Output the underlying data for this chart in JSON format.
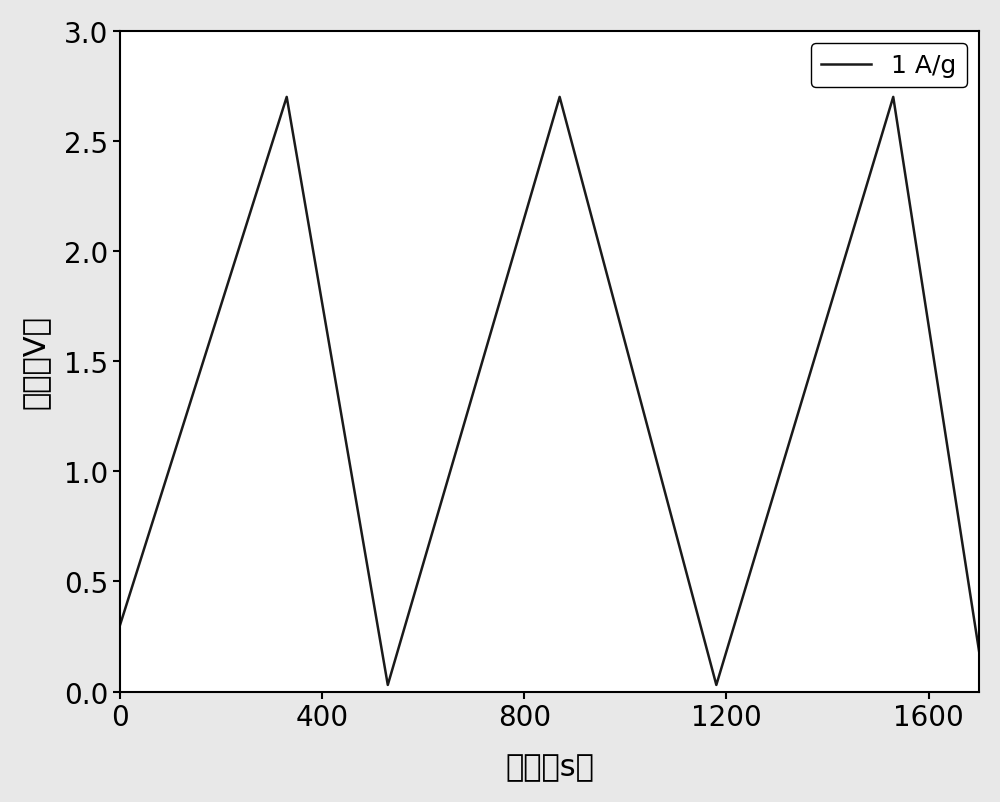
{
  "x": [
    0,
    330,
    530,
    870,
    1180,
    1530,
    1700
  ],
  "y": [
    0.3,
    2.7,
    0.03,
    2.7,
    0.03,
    2.7,
    0.18
  ],
  "xlim": [
    0,
    1700
  ],
  "ylim": [
    0.0,
    3.0
  ],
  "xticks": [
    0,
    400,
    800,
    1200,
    1600
  ],
  "yticks": [
    0.0,
    0.5,
    1.0,
    1.5,
    2.0,
    2.5,
    3.0
  ],
  "xlabel": "时间（s）",
  "ylabel": "电压（V）",
  "legend_label": "1 A/g",
  "line_color": "#1a1a1a",
  "line_width": 1.8,
  "background_color": "#e8e8e8",
  "plot_bg_color": "#ffffff",
  "label_fontsize": 22,
  "tick_fontsize": 20,
  "legend_fontsize": 18
}
